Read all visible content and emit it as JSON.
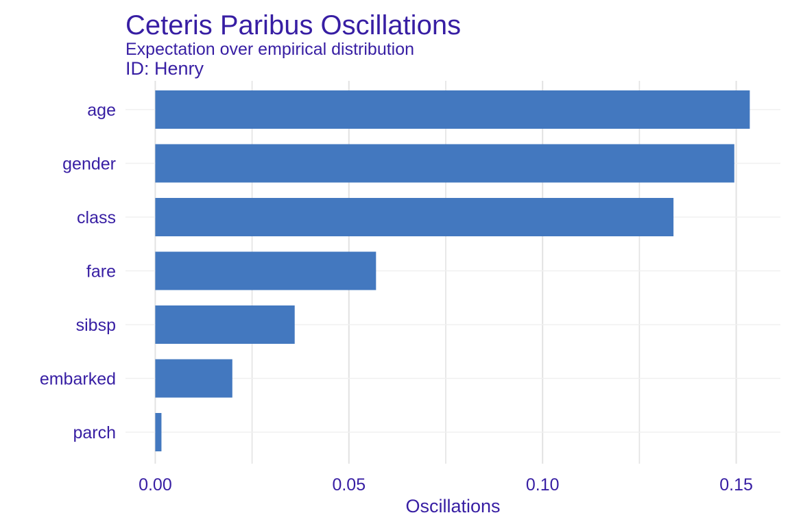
{
  "title": "Ceteris Paribus Oscillations",
  "subtitle": "Expectation over empirical distribution",
  "id_label": "ID: Henry",
  "colors": {
    "text": "#371ea3",
    "bar": "#4378bf",
    "grid_major": "#e2e2e2",
    "grid_minor": "#f0f0f0",
    "background": "#ffffff"
  },
  "chart_data": {
    "type": "bar",
    "orientation": "horizontal",
    "categories": [
      "age",
      "gender",
      "class",
      "fare",
      "sibsp",
      "embarked",
      "parch"
    ],
    "values": [
      0.1535,
      0.1495,
      0.1338,
      0.057,
      0.036,
      0.0199,
      0.0016
    ],
    "xlabel": "Oscillations",
    "ylabel": "",
    "xlim": [
      0.0,
      0.16
    ],
    "xticks": [
      0.0,
      0.05,
      0.1,
      0.15
    ],
    "xtick_labels": [
      "0.00",
      "0.05",
      "0.10",
      "0.15"
    ],
    "grid": true,
    "legend": "none"
  }
}
